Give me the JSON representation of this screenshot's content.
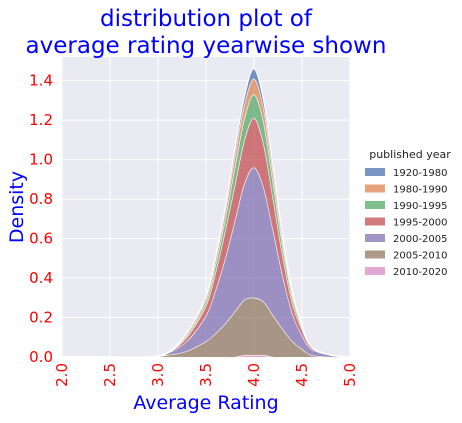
{
  "chart_data": {
    "type": "area",
    "stacked": true,
    "title": "distribution plot of\naverage rating yearwise shown",
    "xlabel": "Average Rating",
    "ylabel": "Density",
    "xlim": [
      2.0,
      5.0
    ],
    "ylim": [
      0.0,
      1.52
    ],
    "xticks": [
      "2.0",
      "2.5",
      "3.0",
      "3.5",
      "4.0",
      "4.5",
      "5.0"
    ],
    "yticks": [
      "0.0",
      "0.2",
      "0.4",
      "0.6",
      "0.8",
      "1.0",
      "1.2",
      "1.4"
    ],
    "grid": true,
    "background": "#eaeaf2",
    "title_color": "#0000ff",
    "tick_color": "#ff0000",
    "legend": {
      "title": "published year",
      "placement": "right"
    },
    "x": [
      2.0,
      2.5,
      2.9,
      3.1,
      3.3,
      3.5,
      3.6,
      3.7,
      3.8,
      3.9,
      4.0,
      4.1,
      4.2,
      4.3,
      4.4,
      4.5,
      4.6,
      4.8,
      5.0
    ],
    "series": [
      {
        "name": "2010-2020",
        "color": "#da8bc3",
        "values": [
          0.0,
          0.0,
          0.0,
          0.0,
          0.0,
          0.0,
          0.0,
          0.0,
          0.0,
          0.01,
          0.01,
          0.01,
          0.0,
          0.0,
          0.0,
          0.0,
          0.0,
          0.0,
          0.0
        ]
      },
      {
        "name": "2005-2010",
        "color": "#937860",
        "values": [
          0.0,
          0.0,
          0.0,
          0.01,
          0.03,
          0.08,
          0.12,
          0.17,
          0.23,
          0.28,
          0.29,
          0.27,
          0.21,
          0.14,
          0.08,
          0.04,
          0.01,
          0.0,
          0.0
        ]
      },
      {
        "name": "2000-2005",
        "color": "#8172b3",
        "values": [
          0.0,
          0.0,
          0.0,
          0.01,
          0.05,
          0.13,
          0.22,
          0.33,
          0.46,
          0.59,
          0.66,
          0.58,
          0.43,
          0.27,
          0.14,
          0.07,
          0.03,
          0.01,
          0.0
        ]
      },
      {
        "name": "1995-2000",
        "color": "#c44e52",
        "values": [
          0.0,
          0.0,
          0.0,
          0.0,
          0.02,
          0.05,
          0.09,
          0.14,
          0.18,
          0.22,
          0.25,
          0.22,
          0.16,
          0.1,
          0.05,
          0.03,
          0.01,
          0.0,
          0.0
        ]
      },
      {
        "name": "1990-1995",
        "color": "#55a868",
        "values": [
          0.0,
          0.0,
          0.0,
          0.0,
          0.01,
          0.02,
          0.04,
          0.06,
          0.09,
          0.11,
          0.12,
          0.11,
          0.08,
          0.05,
          0.03,
          0.01,
          0.0,
          0.0,
          0.0
        ]
      },
      {
        "name": "1980-1990",
        "color": "#dd8452",
        "values": [
          0.0,
          0.0,
          0.0,
          0.0,
          0.01,
          0.02,
          0.03,
          0.04,
          0.06,
          0.07,
          0.08,
          0.07,
          0.05,
          0.03,
          0.02,
          0.01,
          0.0,
          0.0,
          0.0
        ]
      },
      {
        "name": "1920-1980",
        "color": "#4c72b0",
        "values": [
          0.0,
          0.0,
          0.0,
          0.0,
          0.0,
          0.01,
          0.01,
          0.02,
          0.03,
          0.04,
          0.05,
          0.04,
          0.03,
          0.02,
          0.01,
          0.0,
          0.0,
          0.0,
          0.0
        ]
      }
    ]
  }
}
